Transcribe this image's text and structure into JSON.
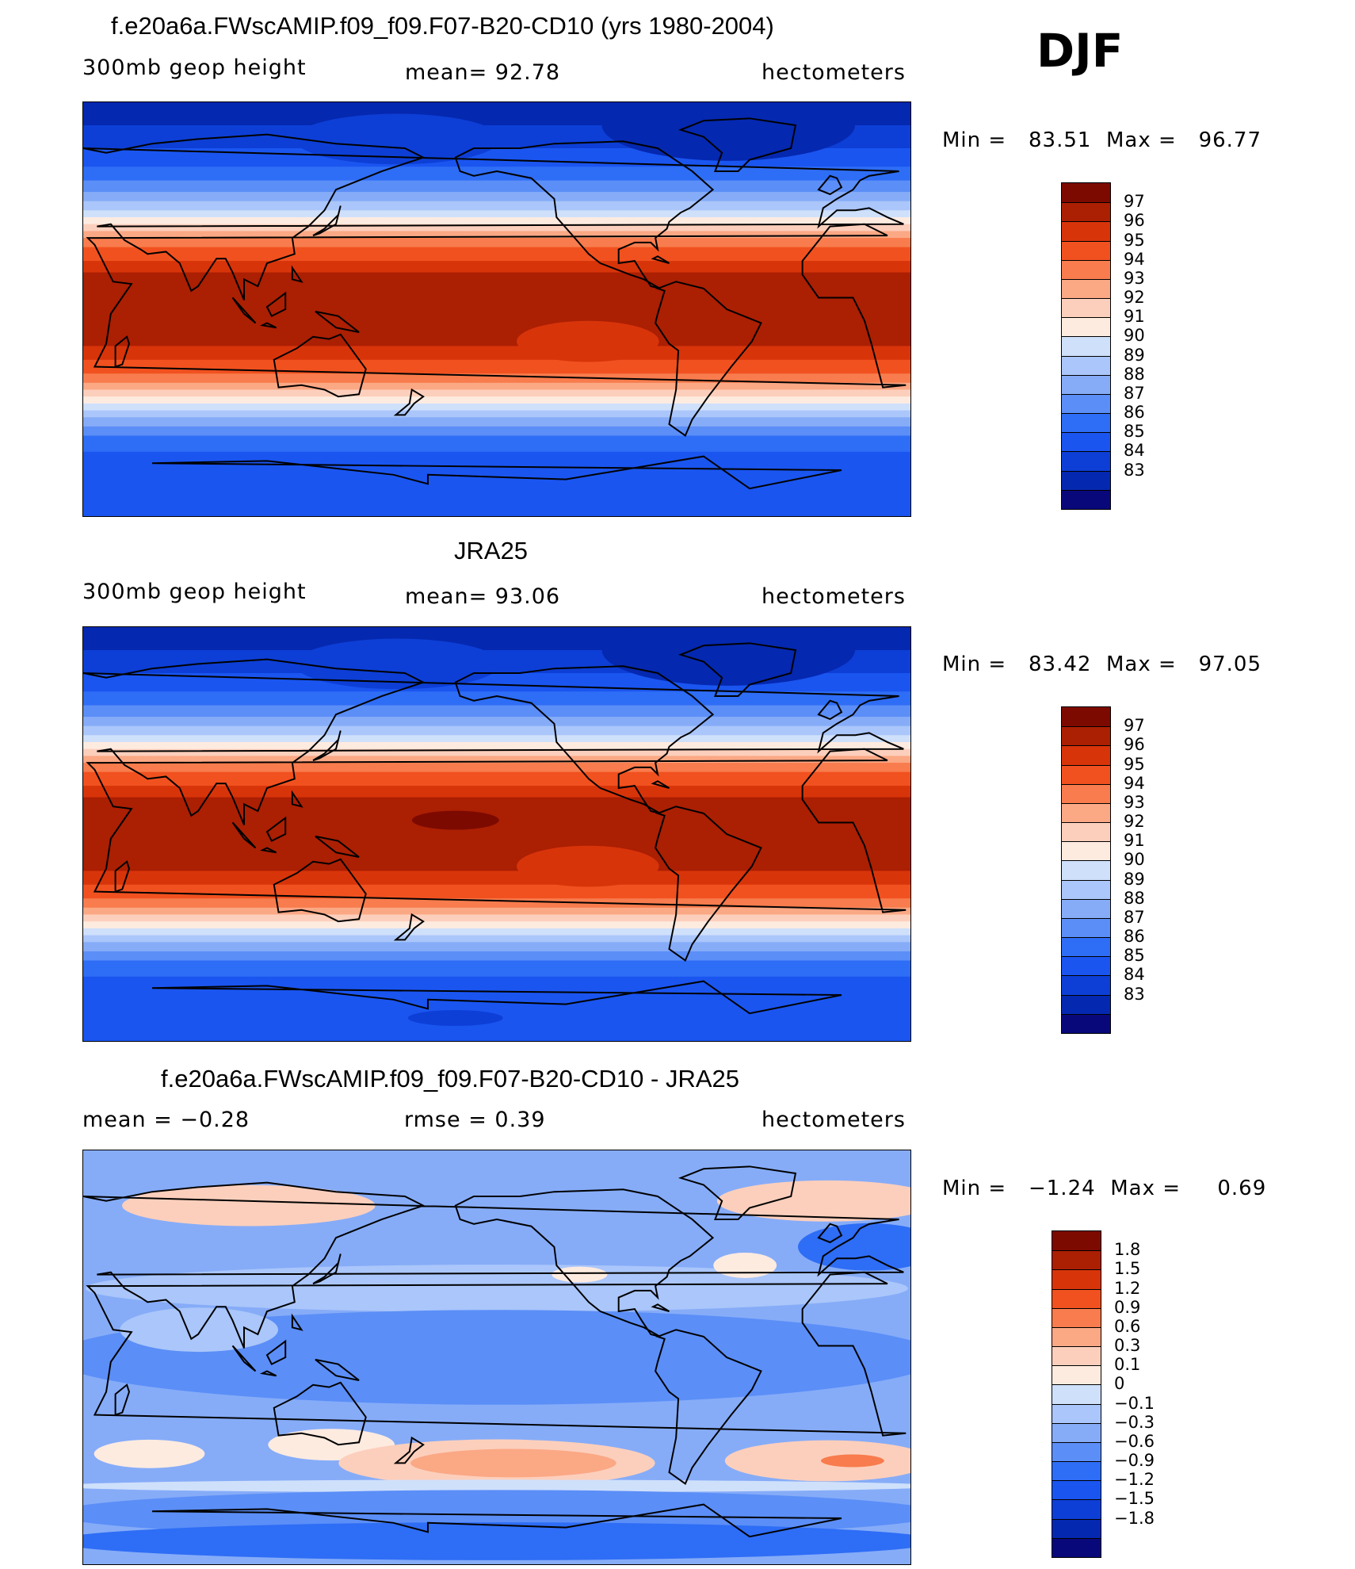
{
  "season": "DJF",
  "colors": {
    "height_scale": [
      "#09087a",
      "#0528b0",
      "#0d3fd6",
      "#1a55f0",
      "#2e6df5",
      "#5b8ef7",
      "#86acf8",
      "#aac6fa",
      "#cfe0fb",
      "#feebe0",
      "#fccfbc",
      "#fba885",
      "#f87c4d",
      "#f1511f",
      "#d8340a",
      "#ab1f03",
      "#7d0a00"
    ],
    "diff_scale": [
      "#09087a",
      "#0528b0",
      "#0d3fd6",
      "#1a55f0",
      "#2e6df5",
      "#5b8ef7",
      "#86acf8",
      "#aac6fa",
      "#cfe0fb",
      "#feebe0",
      "#fccfbc",
      "#fba885",
      "#f87c4d",
      "#f1511f",
      "#d8340a",
      "#ab1f03",
      "#7d0a00"
    ]
  },
  "panels": [
    {
      "title": "f.e20a6a.FWscAMIP.f09_f09.F07-B20-CD10 (yrs 1980-2004)",
      "left_label": "300mb geop height",
      "center_label": "mean=  92.78",
      "right_label": "hectometers",
      "min_text": "Min =",
      "min_value": "83.51",
      "max_text": "Max =",
      "max_value": "96.77",
      "colorbar_labels": [
        "97",
        "96",
        "95",
        "94",
        "93",
        "92",
        "91",
        "90",
        "89",
        "88",
        "87",
        "86",
        "85",
        "84",
        "83"
      ],
      "field": "model"
    },
    {
      "title": "JRA25",
      "left_label": "300mb geop height",
      "center_label": "mean=  93.06",
      "right_label": "hectometers",
      "min_text": "Min =",
      "min_value": "83.42",
      "max_text": "Max =",
      "max_value": "97.05",
      "colorbar_labels": [
        "97",
        "96",
        "95",
        "94",
        "93",
        "92",
        "91",
        "90",
        "89",
        "88",
        "87",
        "86",
        "85",
        "84",
        "83"
      ],
      "field": "obs"
    },
    {
      "title": "f.e20a6a.FWscAMIP.f09_f09.F07-B20-CD10 - JRA25",
      "left_label": "mean =  −0.28",
      "center_label": "rmse =   0.39",
      "right_label": "hectometers",
      "min_text": "Min =",
      "min_value": "−1.24",
      "max_text": "Max =",
      "max_value": "0.69",
      "colorbar_labels": [
        "1.8",
        "1.5",
        "1.2",
        "0.9",
        "0.6",
        "0.3",
        "0.1",
        "0",
        "−0.1",
        "−0.3",
        "−0.6",
        "−0.9",
        "−1.2",
        "−1.5",
        "−1.8"
      ],
      "field": "diff"
    }
  ]
}
